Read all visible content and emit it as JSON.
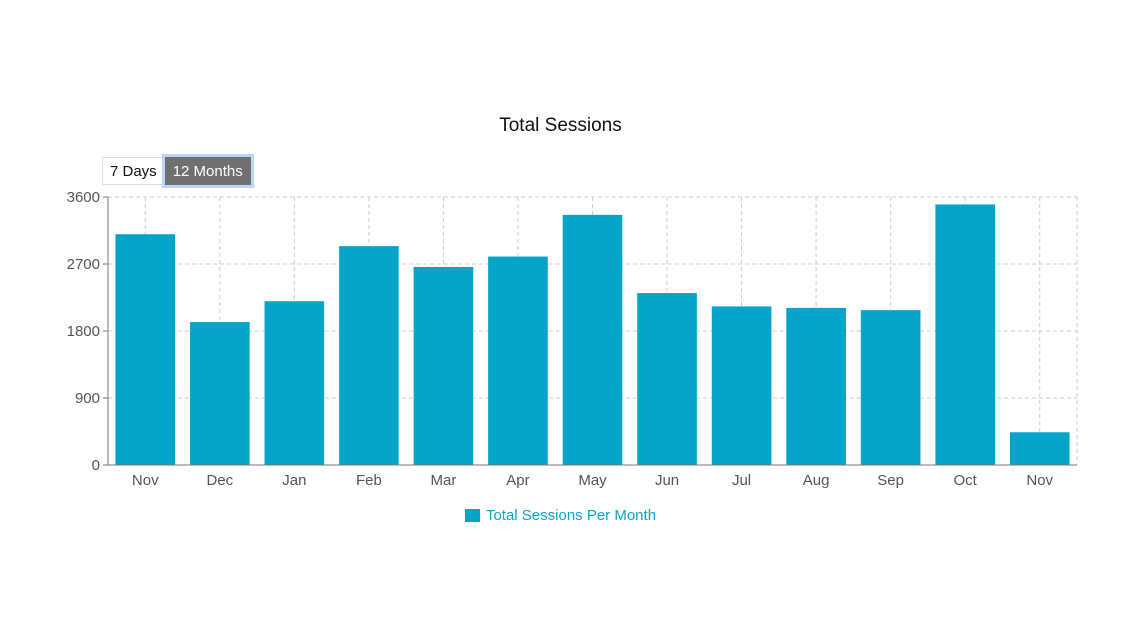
{
  "chart_data": {
    "type": "bar",
    "title": "Total Sessions",
    "categories": [
      "Nov",
      "Dec",
      "Jan",
      "Feb",
      "Mar",
      "Apr",
      "May",
      "Jun",
      "Jul",
      "Aug",
      "Sep",
      "Oct",
      "Nov"
    ],
    "series": [
      {
        "name": "Total Sessions Per Month",
        "values": [
          3100,
          1920,
          2200,
          2940,
          2660,
          2800,
          3360,
          2310,
          2130,
          2110,
          2080,
          3500,
          440
        ]
      }
    ],
    "yticks": [
      "0",
      "900",
      "1800",
      "2700",
      "3600"
    ],
    "ylim": [
      0,
      3600
    ],
    "grid": true,
    "legend_position": "bottom",
    "bar_color": "#05a5c9"
  },
  "controls": {
    "range_options": [
      {
        "label": "7 Days",
        "active": false
      },
      {
        "label": "12 Months",
        "active": true
      }
    ]
  }
}
